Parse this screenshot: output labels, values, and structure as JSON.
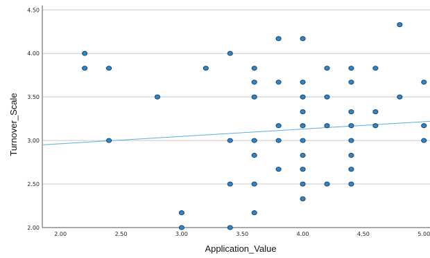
{
  "chart_data": {
    "type": "scatter",
    "title": "",
    "xlabel": "Application_Value",
    "ylabel": "Turnover_Scale",
    "xlim": [
      1.85,
      5.05
    ],
    "ylim": [
      2.0,
      4.55
    ],
    "x_ticks": [
      "2.00",
      "2.50",
      "3.00",
      "3.50",
      "4.00",
      "4.50",
      "5.00"
    ],
    "y_ticks": [
      "2.00",
      "2.50",
      "3.00",
      "3.50",
      "4.00",
      "4.50"
    ],
    "grid": "horizontal",
    "legend": "none",
    "marker_color": "#2e86c8",
    "marker_edge": "#1a3a5a",
    "fit_line_color": "#5aaee0",
    "fit_line": {
      "x": [
        1.85,
        5.05
      ],
      "y": [
        2.95,
        3.22
      ]
    },
    "points": [
      {
        "x": 2.2,
        "y": 4.0
      },
      {
        "x": 2.2,
        "y": 3.83
      },
      {
        "x": 2.4,
        "y": 3.83
      },
      {
        "x": 2.4,
        "y": 3.0
      },
      {
        "x": 2.8,
        "y": 3.5
      },
      {
        "x": 3.0,
        "y": 2.17
      },
      {
        "x": 3.0,
        "y": 2.0
      },
      {
        "x": 3.2,
        "y": 3.83
      },
      {
        "x": 3.4,
        "y": 4.0
      },
      {
        "x": 3.4,
        "y": 3.0
      },
      {
        "x": 3.4,
        "y": 2.5
      },
      {
        "x": 3.4,
        "y": 2.0
      },
      {
        "x": 3.6,
        "y": 3.83
      },
      {
        "x": 3.6,
        "y": 3.67
      },
      {
        "x": 3.6,
        "y": 3.5
      },
      {
        "x": 3.6,
        "y": 3.0
      },
      {
        "x": 3.6,
        "y": 2.83
      },
      {
        "x": 3.6,
        "y": 2.5
      },
      {
        "x": 3.6,
        "y": 2.17
      },
      {
        "x": 3.8,
        "y": 4.17
      },
      {
        "x": 3.8,
        "y": 3.67
      },
      {
        "x": 3.8,
        "y": 3.17
      },
      {
        "x": 3.8,
        "y": 3.0
      },
      {
        "x": 3.8,
        "y": 2.67
      },
      {
        "x": 4.0,
        "y": 4.17
      },
      {
        "x": 4.0,
        "y": 3.67
      },
      {
        "x": 4.0,
        "y": 3.5
      },
      {
        "x": 4.0,
        "y": 3.33
      },
      {
        "x": 4.0,
        "y": 3.17
      },
      {
        "x": 4.0,
        "y": 3.0
      },
      {
        "x": 4.0,
        "y": 2.83
      },
      {
        "x": 4.0,
        "y": 2.67
      },
      {
        "x": 4.0,
        "y": 2.5
      },
      {
        "x": 4.0,
        "y": 2.33
      },
      {
        "x": 4.2,
        "y": 3.83
      },
      {
        "x": 4.2,
        "y": 3.5
      },
      {
        "x": 4.2,
        "y": 3.17
      },
      {
        "x": 4.2,
        "y": 2.5
      },
      {
        "x": 4.4,
        "y": 3.83
      },
      {
        "x": 4.4,
        "y": 3.67
      },
      {
        "x": 4.4,
        "y": 3.33
      },
      {
        "x": 4.4,
        "y": 3.17
      },
      {
        "x": 4.4,
        "y": 3.0
      },
      {
        "x": 4.4,
        "y": 2.83
      },
      {
        "x": 4.4,
        "y": 2.67
      },
      {
        "x": 4.4,
        "y": 2.5
      },
      {
        "x": 4.6,
        "y": 3.83
      },
      {
        "x": 4.6,
        "y": 3.33
      },
      {
        "x": 4.6,
        "y": 3.17
      },
      {
        "x": 4.8,
        "y": 4.33
      },
      {
        "x": 4.8,
        "y": 3.5
      },
      {
        "x": 5.0,
        "y": 3.67
      },
      {
        "x": 5.0,
        "y": 3.17
      },
      {
        "x": 5.0,
        "y": 3.0
      }
    ]
  }
}
